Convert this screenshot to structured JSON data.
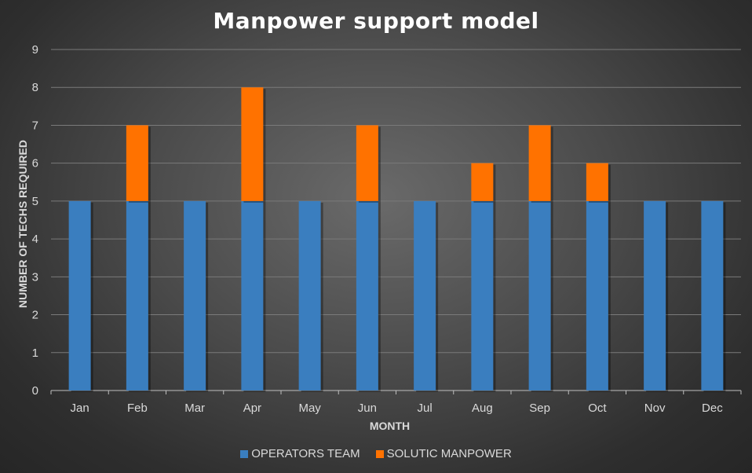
{
  "chart_data": {
    "type": "bar",
    "stacked": true,
    "title": "Manpower support model",
    "xlabel": "MONTH",
    "ylabel": "NUMBER OF TECHS REQUIRED",
    "ylim": [
      0,
      9
    ],
    "yticks": [
      0,
      1,
      2,
      3,
      4,
      5,
      6,
      7,
      8,
      9
    ],
    "grid": true,
    "legend_position": "bottom",
    "categories": [
      "Jan",
      "Feb",
      "Mar",
      "Apr",
      "May",
      "Jun",
      "Jul",
      "Aug",
      "Sep",
      "Oct",
      "Nov",
      "Dec"
    ],
    "series": [
      {
        "name": "OPERATORS TEAM",
        "color": "#3a7ebf",
        "values": [
          5,
          5,
          5,
          5,
          5,
          5,
          5,
          5,
          5,
          5,
          5,
          5
        ]
      },
      {
        "name": "SOLUTIC MANPOWER",
        "color": "#ff7200",
        "values": [
          0,
          2,
          0,
          3,
          0,
          2,
          0,
          1,
          2,
          1,
          0,
          0
        ]
      }
    ]
  }
}
